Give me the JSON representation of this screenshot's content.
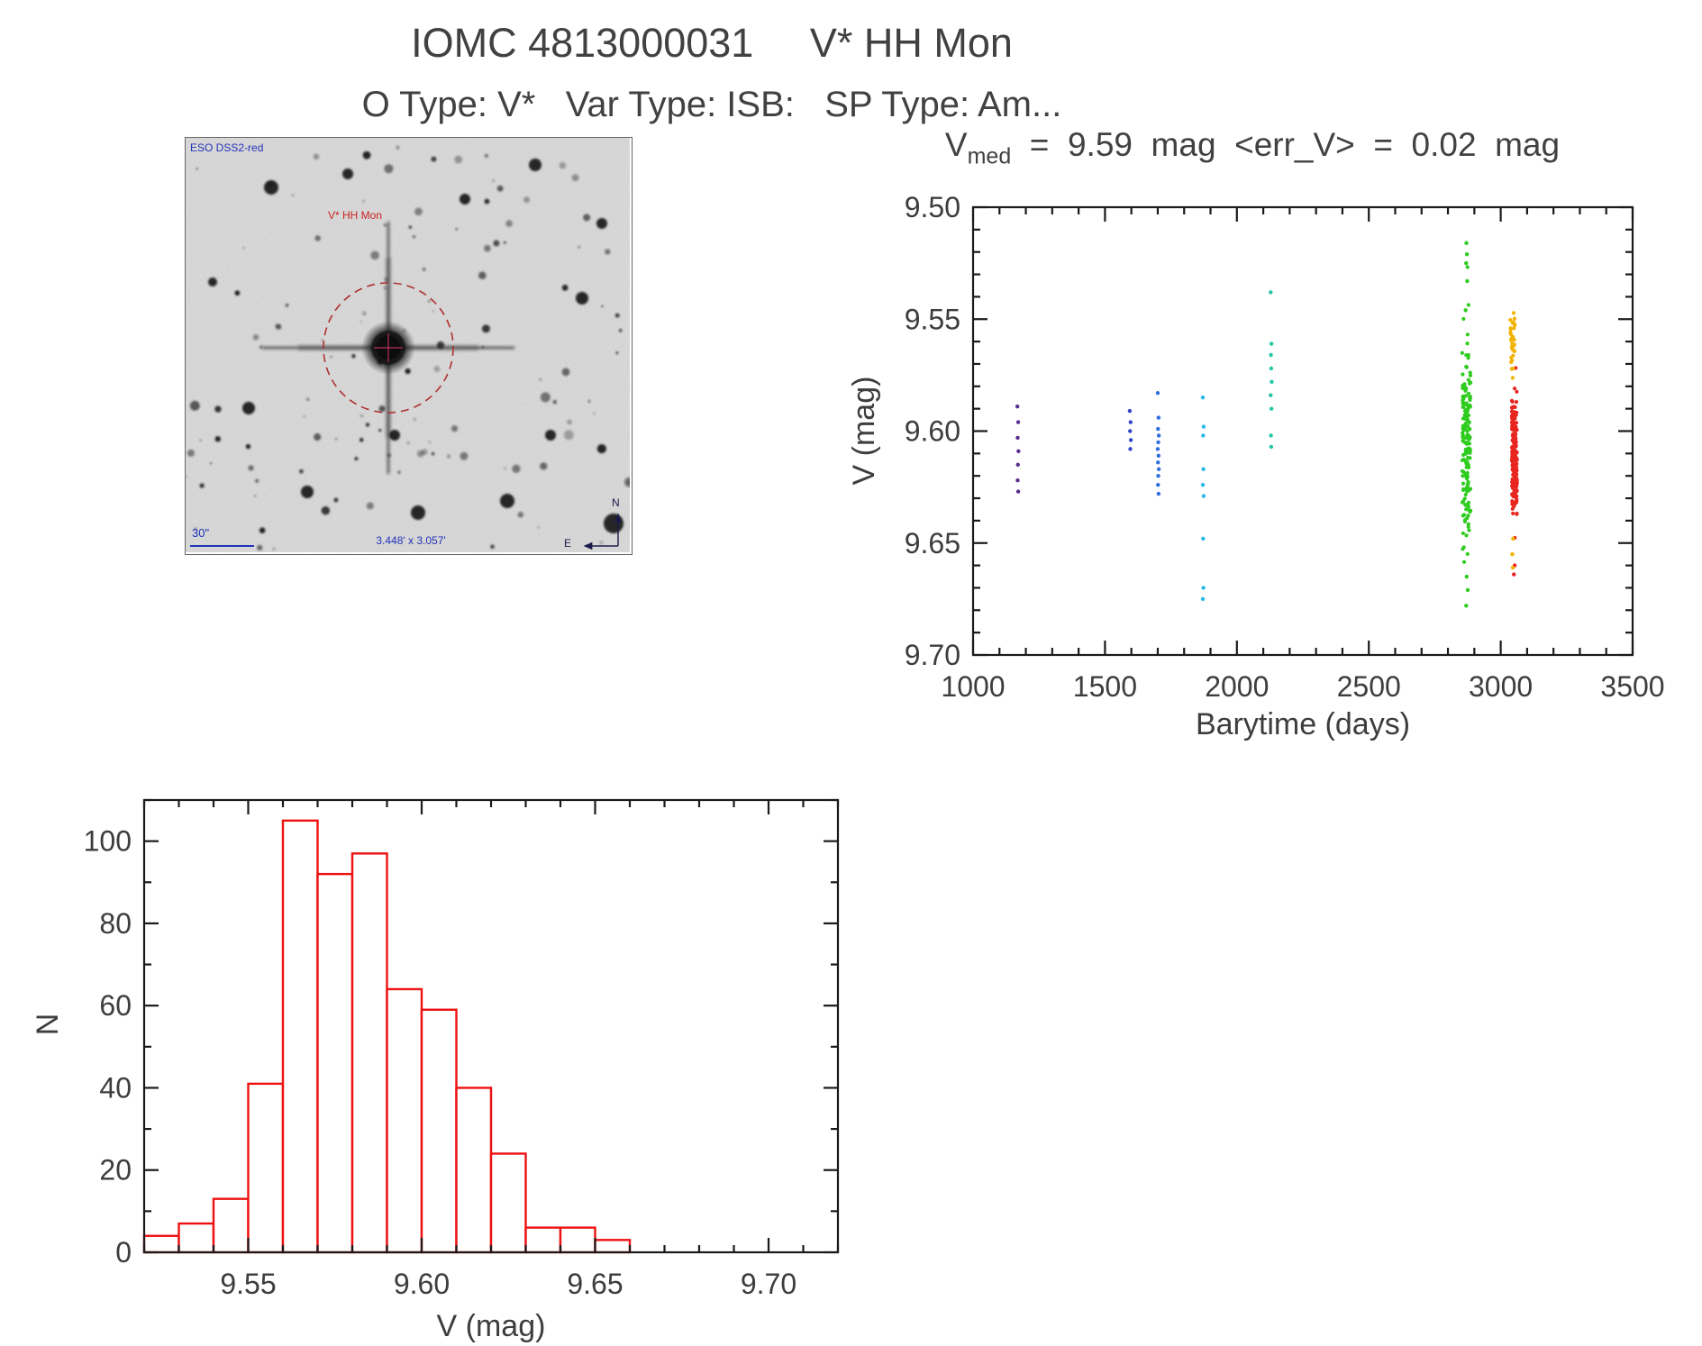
{
  "page": {
    "title": "IOMC 4813000031     V* HH Mon",
    "subtitle": "O Type: V*   Var Type: ISB:   SP Type: Am..."
  },
  "finding_chart": {
    "survey_label": "ESO DSS2-red",
    "target_label": "V* HH Mon",
    "scale_label": "30\"",
    "fov_label": "3.448' x 3.057'",
    "compass_north": "N",
    "compass_east": "E"
  },
  "chart_data": [
    {
      "type": "scatter",
      "name": "light-curve",
      "title_parts": {
        "prefix": "V",
        "subscript": "med",
        "rest": "  =  9.59  mag  <err_V>  =  0.02  mag"
      },
      "xlabel": "Barytime (days)",
      "ylabel": "V (mag)",
      "xlim": [
        1000,
        3500
      ],
      "ylim": [
        9.5,
        9.7
      ],
      "y_axis_inverted_magnitudes": true,
      "xticks": [
        1000,
        1500,
        2000,
        2500,
        3000,
        3500
      ],
      "xtick_labels": [
        "1000",
        "1500",
        "2000",
        "2500",
        "3000",
        "3500"
      ],
      "x_minor": 100,
      "yticks": [
        9.5,
        9.55,
        9.6,
        9.65,
        9.7
      ],
      "ytick_labels": [
        "9.50",
        "9.55",
        "9.60",
        "9.65",
        "9.70"
      ],
      "y_minor": 0.01,
      "marker_radius": 2.2,
      "series": [
        {
          "name": "epoch-1",
          "color": "#5b2d8e",
          "points": [
            [
              1168,
              9.589
            ],
            [
              1171,
              9.596
            ],
            [
              1169,
              9.603
            ],
            [
              1172,
              9.609
            ],
            [
              1170,
              9.615
            ],
            [
              1169,
              9.622
            ],
            [
              1171,
              9.627
            ]
          ]
        },
        {
          "name": "epoch-2",
          "color": "#3346c8",
          "points": [
            [
              1594,
              9.591
            ],
            [
              1597,
              9.596
            ],
            [
              1595,
              9.6
            ],
            [
              1598,
              9.604
            ],
            [
              1596,
              9.608
            ]
          ]
        },
        {
          "name": "epoch-3",
          "color": "#2f6fe0",
          "points": [
            [
              1700,
              9.583
            ],
            [
              1703,
              9.594
            ],
            [
              1701,
              9.599
            ],
            [
              1704,
              9.602
            ],
            [
              1702,
              9.605
            ],
            [
              1700,
              9.608
            ],
            [
              1703,
              9.611
            ],
            [
              1701,
              9.614
            ],
            [
              1704,
              9.617
            ],
            [
              1702,
              9.62
            ],
            [
              1701,
              9.624
            ],
            [
              1703,
              9.628
            ]
          ]
        },
        {
          "name": "epoch-4",
          "color": "#2bb8e6",
          "points": [
            [
              1871,
              9.585
            ],
            [
              1874,
              9.598
            ],
            [
              1872,
              9.602
            ],
            [
              1873,
              9.617
            ],
            [
              1871,
              9.624
            ],
            [
              1874,
              9.629
            ],
            [
              1872,
              9.648
            ],
            [
              1873,
              9.67
            ],
            [
              1871,
              9.675
            ]
          ]
        },
        {
          "name": "epoch-5",
          "color": "#23c7a5",
          "points": [
            [
              2128,
              9.538
            ],
            [
              2131,
              9.561
            ],
            [
              2129,
              9.566
            ],
            [
              2130,
              9.572
            ],
            [
              2132,
              9.578
            ],
            [
              2128,
              9.584
            ],
            [
              2131,
              9.59
            ],
            [
              2129,
              9.602
            ],
            [
              2130,
              9.607
            ]
          ]
        },
        {
          "name": "epoch-6",
          "color": "#2ecc1e",
          "generate": {
            "n": 175,
            "seed": 11,
            "x": 2870,
            "x_jitter": 16,
            "y_mean": 9.606,
            "y_sigma": 0.021,
            "y_min": 9.523,
            "y_max": 9.662
          },
          "points": [
            [
              2870,
              9.516
            ],
            [
              2872,
              9.521
            ],
            [
              2869,
              9.525
            ],
            [
              2873,
              9.533
            ],
            [
              2867,
              9.546
            ],
            [
              2871,
              9.665
            ],
            [
              2875,
              9.671
            ],
            [
              2869,
              9.678
            ]
          ]
        },
        {
          "name": "epoch-7",
          "color": "#e8251f",
          "generate": {
            "n": 215,
            "seed": 23,
            "x": 3052,
            "x_jitter": 10,
            "y_mean": 9.61,
            "y_sigma": 0.013,
            "y_min": 9.565,
            "y_max": 9.656
          },
          "points": [
            [
              3053,
              9.66
            ],
            [
              3050,
              9.664
            ]
          ]
        },
        {
          "name": "epoch-8",
          "color": "#f2b300",
          "generate": {
            "n": 32,
            "seed": 37,
            "x": 3045,
            "x_jitter": 9,
            "y_mean": 9.561,
            "y_sigma": 0.009,
            "y_min": 9.543,
            "y_max": 9.582
          },
          "points": [
            [
              3047,
              9.648
            ],
            [
              3044,
              9.655
            ],
            [
              3046,
              9.661
            ]
          ]
        }
      ]
    },
    {
      "type": "bar",
      "name": "magnitude-histogram",
      "xlabel": "V (mag)",
      "ylabel": "N",
      "xlim": [
        9.52,
        9.72
      ],
      "ylim": [
        0,
        110
      ],
      "xticks": [
        9.55,
        9.6,
        9.65,
        9.7
      ],
      "xtick_labels": [
        "9.55",
        "9.60",
        "9.65",
        "9.70"
      ],
      "x_minor": 0.01,
      "yticks": [
        0,
        20,
        40,
        60,
        80,
        100
      ],
      "ytick_labels": [
        "0",
        "20",
        "40",
        "60",
        "80",
        "100"
      ],
      "y_minor": 10,
      "bin_start": 9.52,
      "bin_width": 0.01,
      "values": [
        4,
        7,
        13,
        41,
        105,
        92,
        97,
        64,
        59,
        40,
        24,
        6,
        6,
        3
      ],
      "bar_edge_color": "#ee1111",
      "bar_fill": "#ffffff"
    }
  ]
}
